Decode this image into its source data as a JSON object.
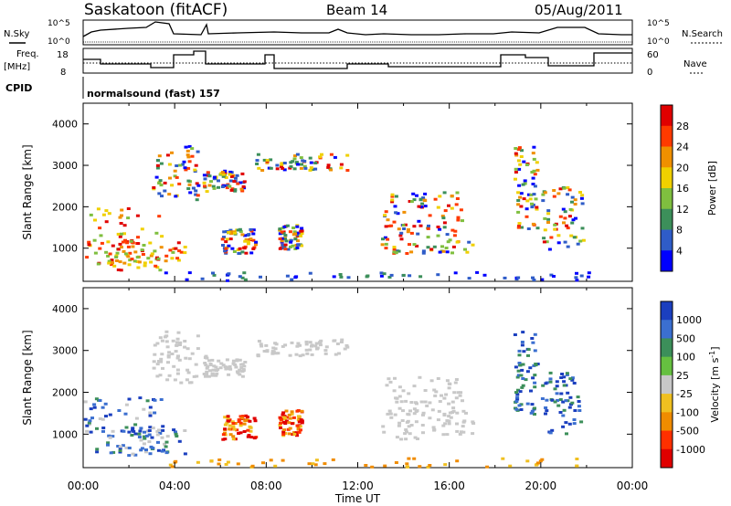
{
  "header": {
    "title": "Saskatoon (fitACF)",
    "beam": "Beam 14",
    "date": "05/Aug/2011"
  },
  "strip_labels": {
    "nsky": "N.Sky",
    "nsearch": "N.Search",
    "freq_top": "Freq.",
    "freq_unit": "[MHz]",
    "nave": "Nave",
    "cpid": "CPID",
    "cpid_value": "normalsound (fast) 157",
    "nsky_ticks": [
      "10^5",
      "10^0"
    ],
    "nsearch_ticks": [
      "10^5",
      "10^0"
    ],
    "freq_ticks": [
      "18",
      "8"
    ],
    "nave_ticks": [
      "60",
      "0"
    ]
  },
  "chart_data": [
    {
      "type": "heatmap",
      "name_label": "Power",
      "ylabel": "Slant Range [km]",
      "yticks": [
        "1000",
        "2000",
        "3000",
        "4000"
      ],
      "ylim": [
        200,
        4500
      ],
      "xlim": [
        0,
        24
      ],
      "colorbar": {
        "label": "Power [dB]",
        "ticks": [
          "4",
          "8",
          "12",
          "16",
          "20",
          "24",
          "28"
        ],
        "colors": [
          "#0000ff",
          "#2f5cc8",
          "#3c8f5a",
          "#7fbf3f",
          "#f0d000",
          "#f09000",
          "#ff3a00",
          "#e00000"
        ]
      }
    },
    {
      "type": "heatmap",
      "name_label": "Velocity",
      "ylabel": "Slant Range [km]",
      "yticks": [
        "1000",
        "2000",
        "3000",
        "4000"
      ],
      "ylim": [
        200,
        4500
      ],
      "xlim": [
        0,
        24
      ],
      "xlabel": "Time UT",
      "xticks": [
        "00:00",
        "04:00",
        "08:00",
        "12:00",
        "16:00",
        "20:00",
        "00:00"
      ],
      "colorbar": {
        "label": "Velocity [m s",
        "label_sup": "-1",
        "label_end": "]",
        "ticks": [
          "1000",
          "500",
          "100",
          "25",
          "-25",
          "-100",
          "-500",
          "-1000"
        ],
        "colors": [
          "#1b3fbf",
          "#3b6fd0",
          "#3c8f5a",
          "#66c040",
          "#c8c8c8",
          "#f0c020",
          "#f08c00",
          "#ff3000",
          "#e00000"
        ]
      }
    }
  ]
}
